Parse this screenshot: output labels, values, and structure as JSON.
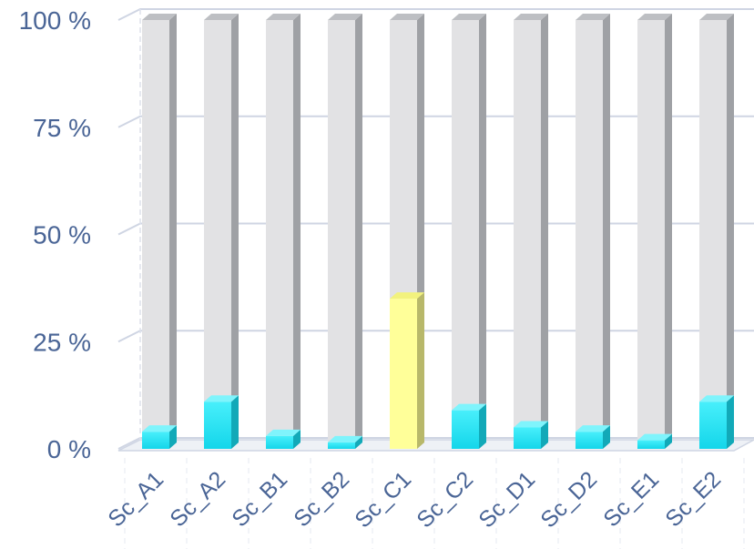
{
  "chart_data": {
    "type": "bar",
    "stacked_percent": true,
    "categories": [
      "Sc_A1",
      "Sc_A2",
      "Sc_B1",
      "Sc_B2",
      "Sc_C1",
      "Sc_C2",
      "Sc_D1",
      "Sc_D2",
      "Sc_E1",
      "Sc_E2"
    ],
    "series": [
      {
        "values": [
          4,
          11,
          3,
          1.5,
          35,
          9,
          5,
          4,
          2,
          11
        ]
      },
      {
        "values": [
          96,
          89,
          97,
          98.5,
          65,
          91,
          95,
          96,
          98,
          89
        ]
      }
    ],
    "highlight_category": "Sc_C1",
    "colors": {
      "lower": "#2ee6f7",
      "lower_highlight": "#ffff99",
      "upper": "#e2e2e4",
      "upper_side": "#9fa1a5",
      "grid": "#cfd5e3",
      "tick_text": "#4a6596"
    },
    "y_ticks": [
      "0 %",
      "25 %",
      "50 %",
      "75 %",
      "100 %"
    ],
    "ylim": [
      0,
      100
    ],
    "grid": true
  }
}
